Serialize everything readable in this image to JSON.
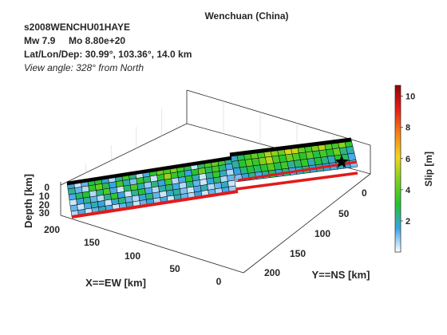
{
  "header": {
    "title": "Wenchuan (China)",
    "event_id": "s2008WENCHU01HAYE",
    "magnitude": "Mw 7.9     Mo 8.80e+20",
    "location": "Lat/Lon/Dep: 30.99°, 103.36°, 14.0 km",
    "view_angle": "View angle: 328° from North"
  },
  "chart_data": {
    "type": "heatmap",
    "title": "Wenchuan (China)",
    "xlabel": "X==EW [km]",
    "ylabel": "Y==NS [km]",
    "zlabel": "Depth [km]",
    "x_ticks": [
      "0",
      "50",
      "100",
      "150",
      "200"
    ],
    "y_ticks": [
      "0",
      "50",
      "100",
      "150",
      "200"
    ],
    "z_ticks": [
      "0",
      "10",
      "20",
      "30"
    ],
    "grid": true,
    "colorbar": {
      "label": "Slip [m]",
      "range": [
        0,
        10.7
      ],
      "ticks": [
        "2",
        "4",
        "6",
        "8",
        "10"
      ],
      "colors": [
        "#ffffff",
        "#3aa2e6",
        "#22c42f",
        "#7ad11e",
        "#f4d51d",
        "#f57f17",
        "#e81d17",
        "#8f0505"
      ]
    },
    "hypocenter_marker": "star",
    "segments": [
      {
        "name": "",
        "slip": [
          [
            1.6,
            0.4,
            1.2,
            2.8,
            3.2,
            1.6,
            0.6,
            2.2,
            3.6,
            2.4,
            0.4,
            1.4,
            3.2,
            4.4,
            3.8,
            4.6,
            3.6,
            2.8,
            0.4,
            2.6,
            3.8,
            4.2,
            3.6,
            2.2
          ],
          [
            2.2,
            1.2,
            0.6,
            3.4,
            4.2,
            2.8,
            1.6,
            3.6,
            2.0,
            1.0,
            3.4,
            2.6,
            0.4,
            3.2,
            5.0,
            3.4,
            2.8,
            1.6,
            3.0,
            4.4,
            2.6,
            3.6,
            2.4,
            1.4
          ],
          [
            1.4,
            2.6,
            3.0,
            0.6,
            2.4,
            3.8,
            1.4,
            0.4,
            2.6,
            3.8,
            2.0,
            0.8,
            2.4,
            1.6,
            3.6,
            0.6,
            1.4,
            3.2,
            2.0,
            0.4,
            2.2,
            3.4,
            1.8,
            0.6
          ],
          [
            0.4,
            1.6,
            2.2,
            1.2,
            0.6,
            2.2,
            3.4,
            1.6,
            0.4,
            2.2,
            3.0,
            1.4,
            0.6,
            2.0,
            2.4,
            1.4,
            0.6,
            2.4,
            1.2,
            0.4,
            1.6,
            2.4,
            0.6,
            1.2
          ],
          [
            1.2,
            0.4,
            1.4,
            2.0,
            1.6,
            0.4,
            1.8,
            2.4,
            1.2,
            0.6,
            1.6,
            2.4,
            1.2,
            0.4,
            1.8,
            2.2,
            1.0,
            0.4,
            1.4,
            2.0,
            0.6,
            1.2,
            1.8,
            0.4
          ],
          [
            0.6,
            1.4,
            0.4,
            1.2,
            2.0,
            1.4,
            0.4,
            1.2,
            1.8,
            0.4,
            1.2,
            1.6,
            0.6,
            1.4,
            0.4,
            1.8,
            1.2,
            0.6,
            1.6,
            0.4,
            1.2,
            0.6,
            1.4,
            0.8
          ]
        ]
      },
      {
        "name": "",
        "slip": [
          [
            1.8,
            2.6,
            3.6,
            4.2,
            3.8,
            5.2,
            4.8,
            4.2,
            5.8,
            5.6,
            4.2,
            3.6,
            4.6,
            5.4,
            4.0,
            3.6,
            4.8,
            3.2
          ],
          [
            2.2,
            3.2,
            4.0,
            3.4,
            4.6,
            5.4,
            3.8,
            3.2,
            4.4,
            3.8,
            3.2,
            4.2,
            2.8,
            3.6,
            3.0,
            4.4,
            2.4,
            2.0
          ],
          [
            1.6,
            2.4,
            3.0,
            2.6,
            3.2,
            4.0,
            2.8,
            3.6,
            2.2,
            2.6,
            3.4,
            2.0,
            3.0,
            2.4,
            1.8,
            3.2,
            2.6,
            1.4
          ],
          [
            1.0,
            1.6,
            2.2,
            1.4,
            2.0,
            2.8,
            1.6,
            2.4,
            1.4,
            1.8,
            2.4,
            1.6,
            2.0,
            1.6,
            1.4,
            2.0,
            1.6,
            1.0
          ]
        ]
      }
    ]
  }
}
